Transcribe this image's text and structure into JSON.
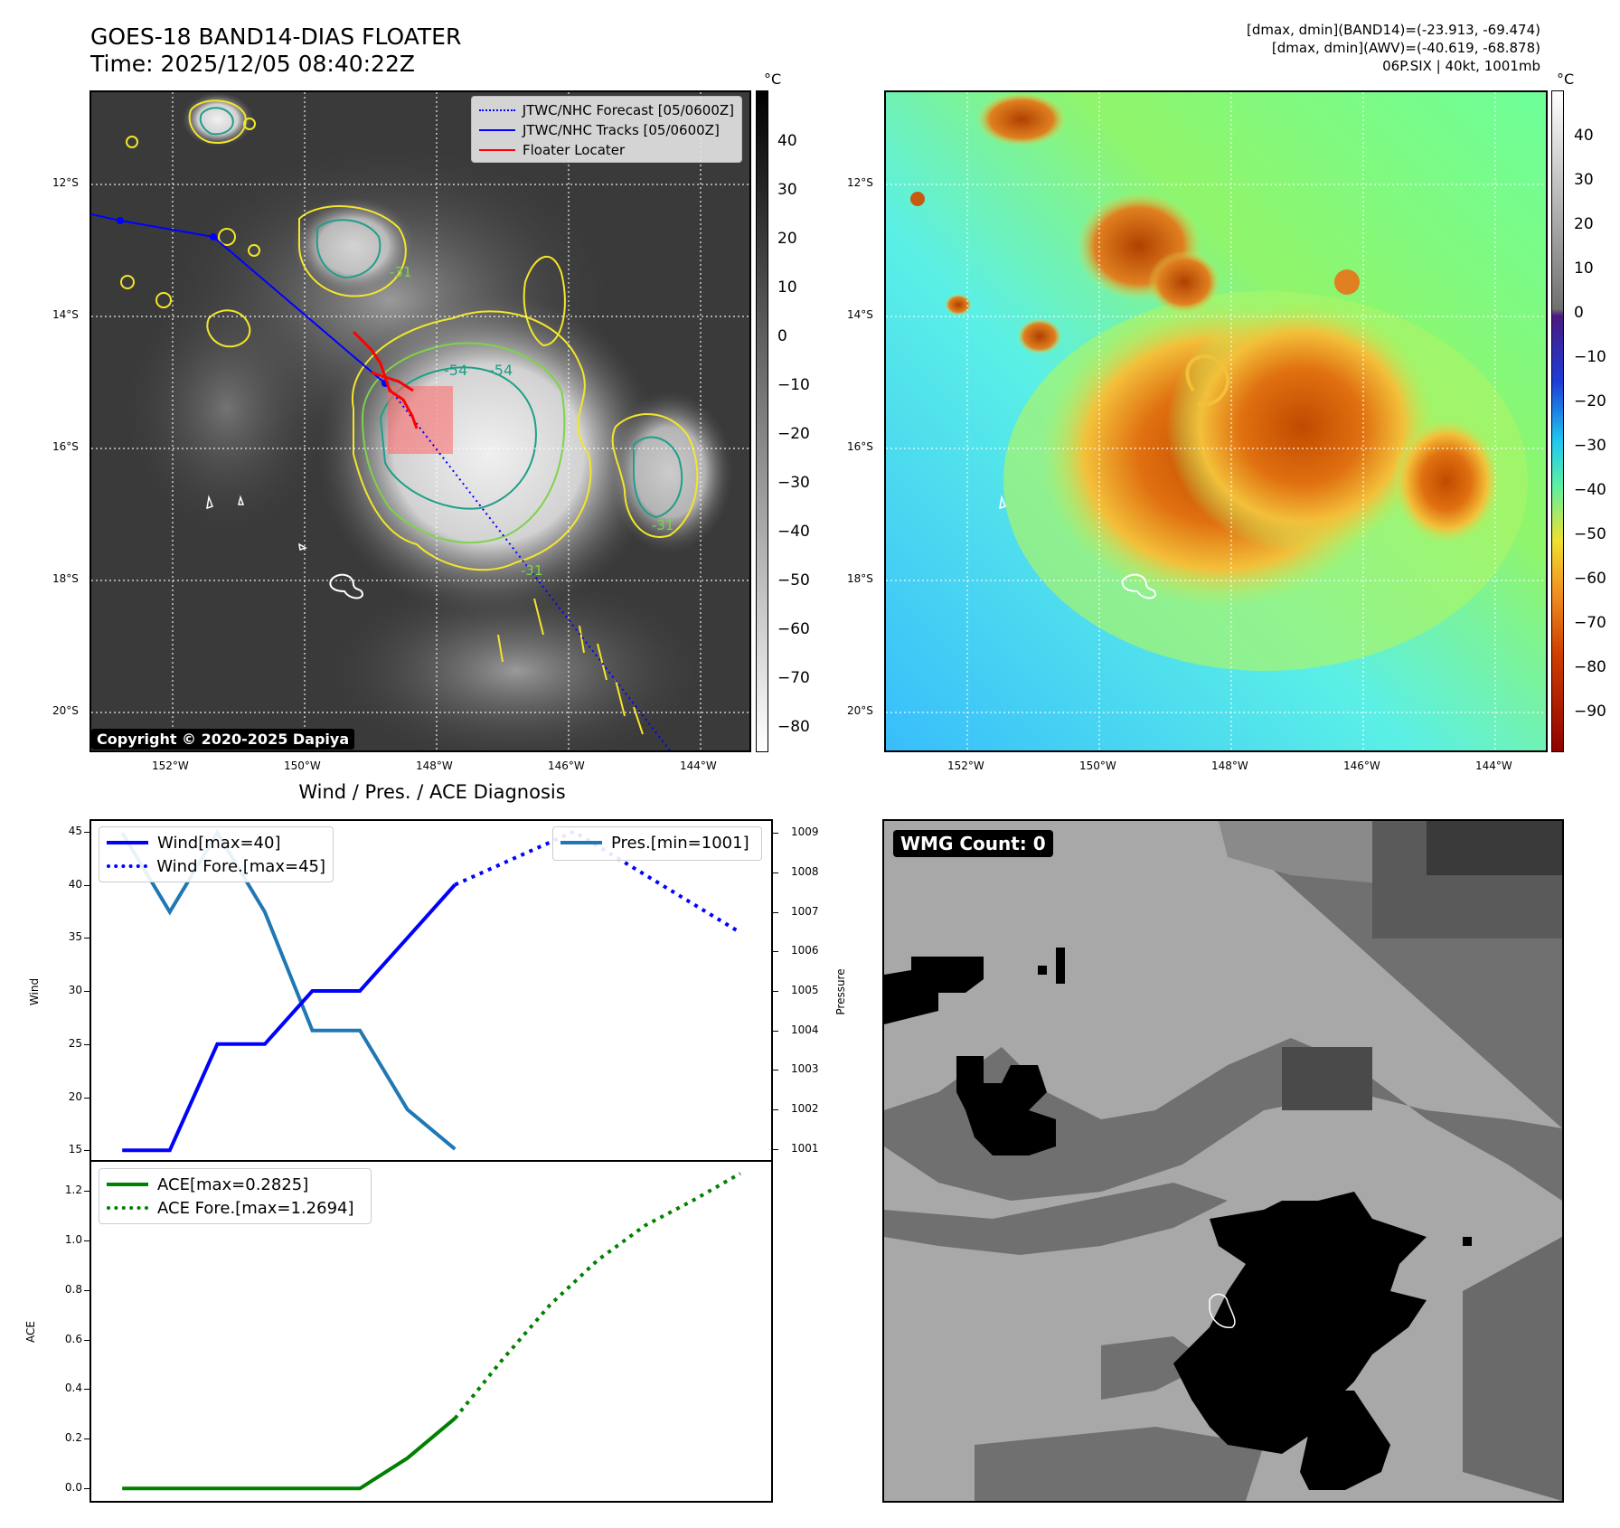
{
  "header": {
    "title_line1": "GOES-18 BAND14-DIAS FLOATER",
    "title_line2": "Time: 2025/12/05 08:40:22Z",
    "info_line1": "[dmax, dmin](BAND14)=(-23.913, -69.474)",
    "info_line2": "[dmax, dmin](AWV)=(-40.619, -68.878)",
    "info_line3": "06P.SIX | 40kt, 1001mb"
  },
  "map_axes": {
    "lat_labels": [
      "12°S",
      "14°S",
      "16°S",
      "18°S",
      "20°S"
    ],
    "lon_labels": [
      "152°W",
      "150°W",
      "148°W",
      "146°W",
      "144°W"
    ]
  },
  "ir_panel": {
    "legend": [
      {
        "label": "JTWC/NHC Forecast [05/0600Z]",
        "color": "#0000ff",
        "style": "dotted"
      },
      {
        "label": "JTWC/NHC Tracks [05/0600Z]",
        "color": "#0000ff",
        "style": "solid-marker"
      },
      {
        "label": "Floater Locater",
        "color": "#ff0000",
        "style": "solid"
      }
    ],
    "copyright": "Copyright © 2020-2025 Dapiya",
    "colorbar_unit": "°C",
    "colorbar_ticks": [
      "40",
      "30",
      "20",
      "10",
      "0",
      "−10",
      "−20",
      "−30",
      "−40",
      "−50",
      "−60",
      "−70",
      "−80"
    ],
    "contour_labels": [
      "-54",
      "-54",
      "-31",
      "-31",
      "-31"
    ]
  },
  "awv_panel": {
    "colorbar_unit": "°C",
    "colorbar_ticks": [
      "40",
      "30",
      "20",
      "10",
      "0",
      "−10",
      "−20",
      "−30",
      "−40",
      "−50",
      "−60",
      "−70",
      "−80",
      "−90"
    ]
  },
  "diagnosis": {
    "title": "Wind / Pres. / ACE Diagnosis",
    "wind_ylabel": "Wind",
    "pressure_ylabel": "Pressure",
    "ace_ylabel": "ACE",
    "wind_ticks": [
      "45",
      "40",
      "35",
      "30",
      "25",
      "20",
      "15"
    ],
    "pres_ticks": [
      "1009",
      "1008",
      "1007",
      "1006",
      "1005",
      "1004",
      "1003",
      "1002",
      "1001"
    ],
    "ace_ticks": [
      "1.2",
      "1.0",
      "0.8",
      "0.6",
      "0.4",
      "0.2",
      "0.0"
    ],
    "legend_wind": "Wind[max=40]",
    "legend_wind_fore": "Wind Fore.[max=45]",
    "legend_pres": "Pres.[min=1001]",
    "legend_ace": "ACE[max=0.2825]",
    "legend_ace_fore": "ACE Fore.[max=1.2694]"
  },
  "chart_data": [
    {
      "type": "line",
      "title": "Wind / Pres. / ACE Diagnosis",
      "xlabel": "",
      "ylabel": "Wind",
      "ylim": [
        14,
        46
      ],
      "x": [
        0,
        1,
        2,
        3,
        4,
        5,
        6,
        7,
        8,
        9,
        10,
        11,
        12,
        13
      ],
      "series": [
        {
          "name": "Wind[max=40]",
          "color": "#0000ff",
          "style": "solid",
          "x": [
            0,
            1,
            2,
            3,
            4,
            5,
            6,
            7
          ],
          "values": [
            15,
            15,
            25,
            25,
            30,
            30,
            35,
            40
          ]
        },
        {
          "name": "Wind Fore.[max=45]",
          "color": "#0000ff",
          "style": "dotted",
          "x": [
            7,
            9.5,
            13
          ],
          "values": [
            40,
            45,
            35.5
          ]
        }
      ]
    },
    {
      "type": "line",
      "ylabel": "Pressure",
      "ylim": [
        1000.7,
        1009.3
      ],
      "series": [
        {
          "name": "Pres.[min=1001]",
          "color": "#1f77b4",
          "style": "solid",
          "x": [
            0,
            1,
            2,
            3,
            4,
            5,
            6,
            7
          ],
          "values": [
            1009,
            1007,
            1009,
            1007,
            1004,
            1004,
            1002,
            1001
          ]
        }
      ]
    },
    {
      "type": "line",
      "ylabel": "ACE",
      "ylim": [
        -0.05,
        1.32
      ],
      "series": [
        {
          "name": "ACE[max=0.2825]",
          "color": "#008000",
          "style": "solid",
          "x": [
            0,
            1,
            2,
            3,
            4,
            5,
            6,
            7
          ],
          "values": [
            0,
            0,
            0,
            0,
            0,
            0,
            0.1225,
            0.2825
          ]
        },
        {
          "name": "ACE Fore.[max=1.2694]",
          "color": "#008000",
          "style": "dotted",
          "x": [
            7,
            8,
            9,
            10,
            11,
            12,
            13
          ],
          "values": [
            0.2825,
            0.52,
            0.74,
            0.92,
            1.06,
            1.16,
            1.2694
          ]
        }
      ]
    }
  ],
  "wmg_panel": {
    "label": "WMG Count: 0"
  }
}
